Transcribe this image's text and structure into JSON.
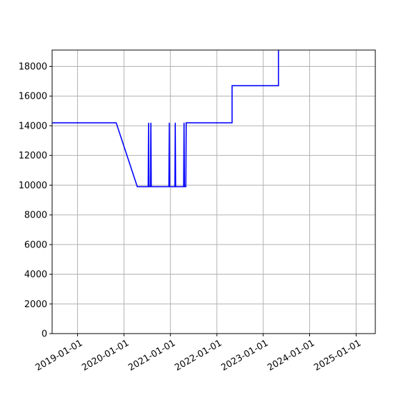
{
  "chart_data": {
    "type": "line",
    "title": "",
    "xlabel": "",
    "ylabel": "",
    "xlim": [
      "2018-06-15",
      "2025-06-01"
    ],
    "ylim": [
      0,
      19100
    ],
    "grid": true,
    "colors": {
      "line": "#0000ff",
      "grid": "#b0b0b0",
      "axes": "#000000"
    },
    "x_ticks": [
      "2019-01-01",
      "2020-01-01",
      "2021-01-01",
      "2022-01-01",
      "2023-01-01",
      "2024-01-01",
      "2025-01-01"
    ],
    "y_ticks": [
      0,
      2000,
      4000,
      6000,
      8000,
      10000,
      12000,
      14000,
      16000,
      18000
    ],
    "series": [
      {
        "points": [
          {
            "x": "2018-06-15",
            "y": 14200
          },
          {
            "x": "2019-11-01",
            "y": 14200
          },
          {
            "x": "2020-04-15",
            "y": 9900
          },
          {
            "x": "2020-07-10",
            "y": 9900
          },
          {
            "x": "2020-07-13",
            "y": 14200
          },
          {
            "x": "2020-07-16",
            "y": 9900
          },
          {
            "x": "2020-07-28",
            "y": 9900
          },
          {
            "x": "2020-07-31",
            "y": 14200
          },
          {
            "x": "2020-08-03",
            "y": 9900
          },
          {
            "x": "2020-12-20",
            "y": 9900
          },
          {
            "x": "2020-12-23",
            "y": 14200
          },
          {
            "x": "2020-12-26",
            "y": 9900
          },
          {
            "x": "2021-02-05",
            "y": 9900
          },
          {
            "x": "2021-02-08",
            "y": 14200
          },
          {
            "x": "2021-02-11",
            "y": 9900
          },
          {
            "x": "2021-04-15",
            "y": 9900
          },
          {
            "x": "2021-04-18",
            "y": 14200
          },
          {
            "x": "2021-04-21",
            "y": 9900
          },
          {
            "x": "2021-05-02",
            "y": 9900
          },
          {
            "x": "2021-05-05",
            "y": 14200
          },
          {
            "x": "2022-05-01",
            "y": 14200
          },
          {
            "x": "2022-05-01",
            "y": 16700
          },
          {
            "x": "2023-05-01",
            "y": 16700
          },
          {
            "x": "2023-05-01",
            "y": 19100
          }
        ]
      }
    ]
  }
}
